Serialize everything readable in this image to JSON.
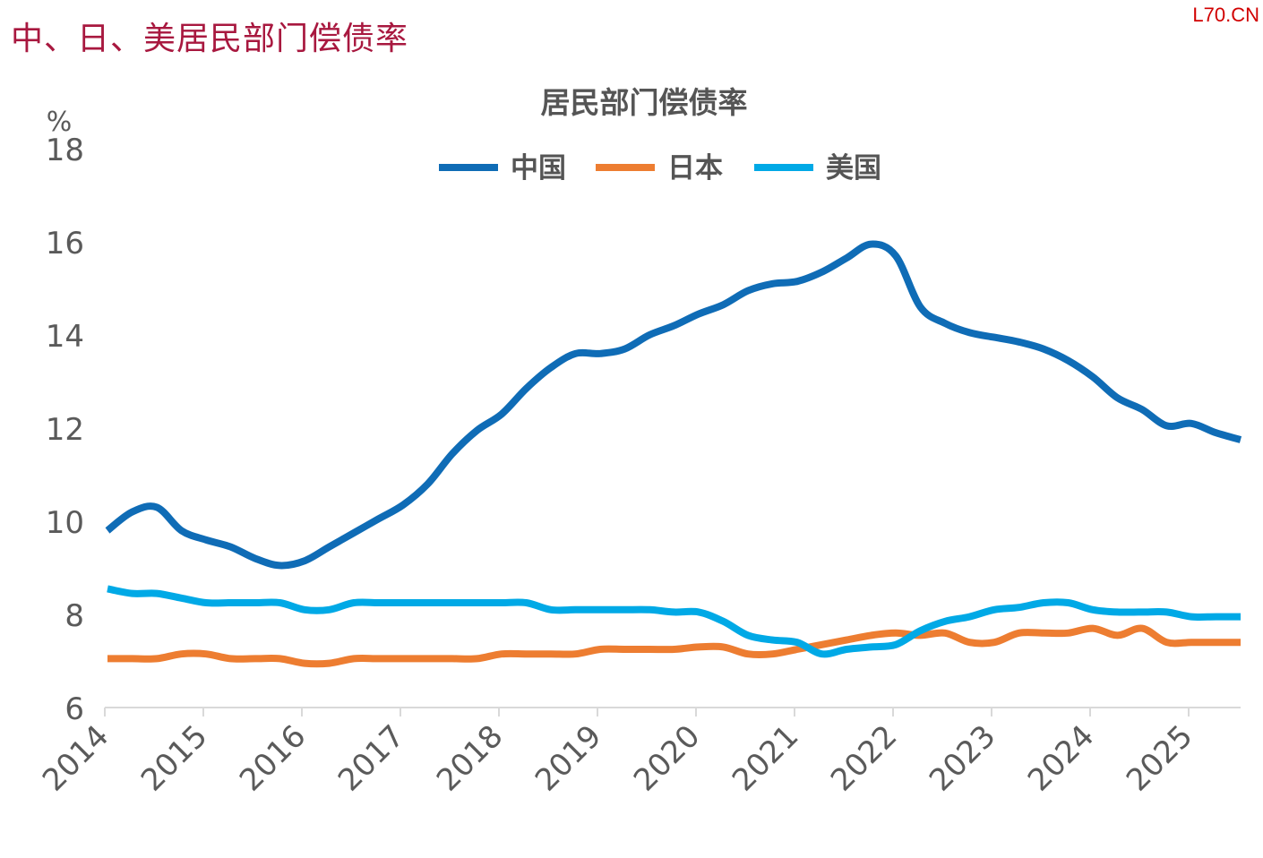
{
  "page": {
    "title": "中、日、美居民部门偿债率",
    "watermark": "L70.CN"
  },
  "chart_data": {
    "type": "line",
    "title": "居民部门偿债率",
    "ylabel": "%",
    "xlabel": "",
    "ylim": [
      6,
      18
    ],
    "yticks": [
      6,
      8,
      10,
      12,
      14,
      16,
      18
    ],
    "xlim": [
      2014,
      2025.75
    ],
    "xticks": [
      "2014",
      "2015",
      "2016",
      "2017",
      "2018",
      "2019",
      "2020",
      "2021",
      "2022",
      "2023",
      "2024",
      "2025"
    ],
    "grid": false,
    "legend_position": "top-center",
    "frequency": "quarterly",
    "start": "2014Q1",
    "series": [
      {
        "name": "中国",
        "color": "#0f6cb6",
        "values": [
          9.8,
          10.2,
          10.3,
          9.8,
          9.6,
          9.45,
          9.2,
          9.05,
          9.15,
          9.45,
          9.75,
          10.05,
          10.35,
          10.8,
          11.45,
          11.95,
          12.3,
          12.85,
          13.3,
          13.6,
          13.6,
          13.7,
          14.0,
          14.2,
          14.45,
          14.65,
          14.95,
          15.1,
          15.15,
          15.35,
          15.65,
          15.95,
          15.7,
          14.6,
          14.25,
          14.05,
          13.95,
          13.85,
          13.7,
          13.45,
          13.1,
          12.65,
          12.4,
          12.05,
          12.1,
          11.9,
          11.75
        ]
      },
      {
        "name": "日本",
        "color": "#ed7d31",
        "values": [
          7.05,
          7.05,
          7.05,
          7.15,
          7.15,
          7.05,
          7.05,
          7.05,
          6.95,
          6.95,
          7.05,
          7.05,
          7.05,
          7.05,
          7.05,
          7.05,
          7.15,
          7.15,
          7.15,
          7.15,
          7.25,
          7.25,
          7.25,
          7.25,
          7.3,
          7.3,
          7.15,
          7.15,
          7.25,
          7.35,
          7.45,
          7.55,
          7.6,
          7.55,
          7.6,
          7.4,
          7.4,
          7.6,
          7.6,
          7.6,
          7.7,
          7.55,
          7.7,
          7.4,
          7.4,
          7.4,
          7.4
        ]
      },
      {
        "name": "美国",
        "color": "#00a9e6",
        "values": [
          8.55,
          8.45,
          8.45,
          8.35,
          8.25,
          8.25,
          8.25,
          8.25,
          8.1,
          8.1,
          8.25,
          8.25,
          8.25,
          8.25,
          8.25,
          8.25,
          8.25,
          8.25,
          8.1,
          8.1,
          8.1,
          8.1,
          8.1,
          8.05,
          8.05,
          7.85,
          7.55,
          7.45,
          7.4,
          7.15,
          7.25,
          7.3,
          7.35,
          7.65,
          7.85,
          7.95,
          8.1,
          8.15,
          8.25,
          8.25,
          8.1,
          8.05,
          8.05,
          8.05,
          7.95,
          7.95,
          7.95
        ]
      }
    ]
  }
}
